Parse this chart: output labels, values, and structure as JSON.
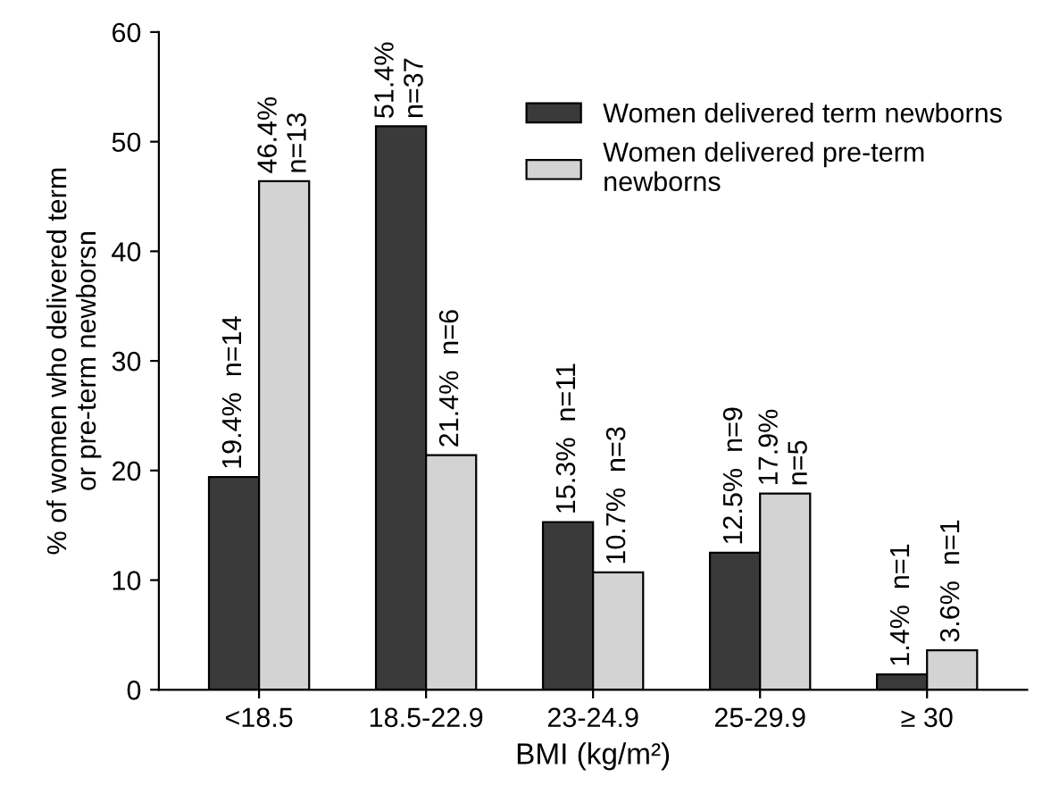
{
  "chart_data": {
    "type": "bar",
    "xlabel": "BMI (kg/m²)",
    "ylabel": "% of women who delivered term\nor pre-term newborsn",
    "categories": [
      "<18.5",
      "18.5-22.9",
      "23-24.9",
      "25-29.9",
      "≥ 30"
    ],
    "series": [
      {
        "name": "Women delivered term newborns",
        "color": "#3a3a3a",
        "values": [
          19.4,
          51.4,
          15.3,
          12.5,
          1.4
        ],
        "value_labels": [
          "19.4%  n=14",
          "51.4%\nn=37",
          "15.3%  n=11",
          "12.5%  n=9",
          "1.4%  n=1"
        ]
      },
      {
        "name": "Women delivered pre-term\nnewborns",
        "color": "#d3d3d3",
        "values": [
          46.4,
          21.4,
          10.7,
          17.9,
          3.6
        ],
        "value_labels": [
          "46.4%\nn=13",
          "21.4%  n=6",
          "10.7%  n=3",
          "17.9%\nn=5",
          "3.6%  n=1"
        ]
      }
    ],
    "ylim": [
      0,
      60
    ],
    "yticks": [
      0,
      10,
      20,
      30,
      40,
      50,
      60
    ],
    "grid": false,
    "legend": "top right"
  }
}
